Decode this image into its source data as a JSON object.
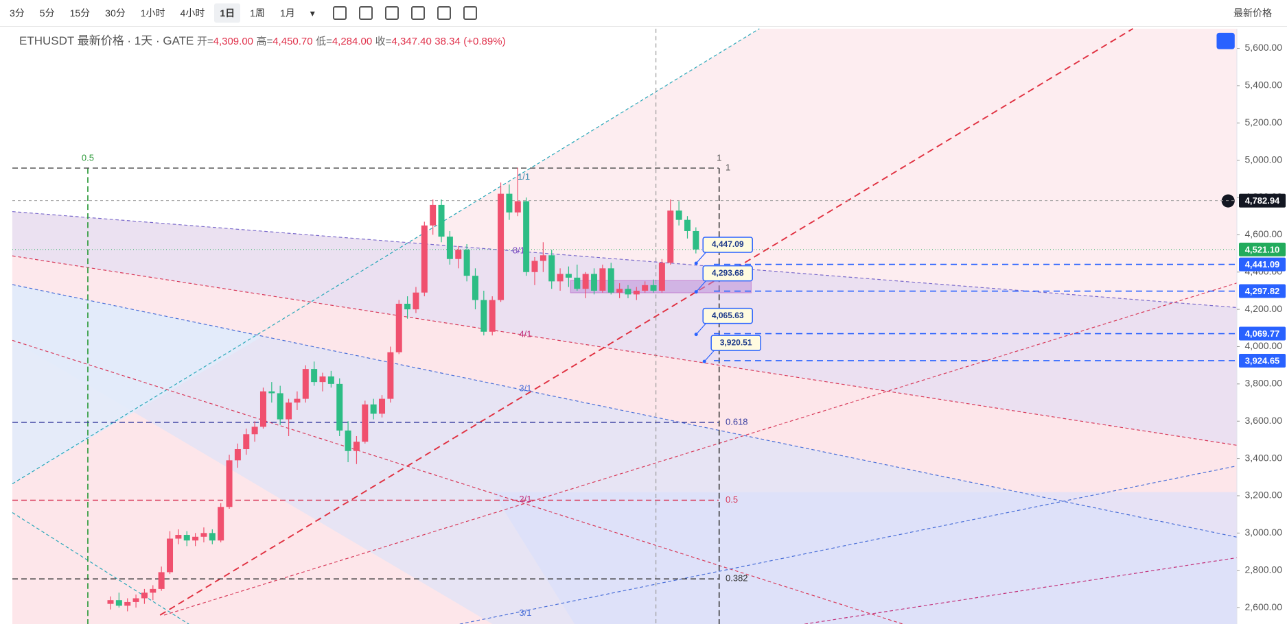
{
  "toolbar": {
    "intervals": [
      "3分",
      "5分",
      "15分",
      "30分",
      "1小时",
      "4小时",
      "1日",
      "1周",
      "1月"
    ],
    "active": "1日",
    "price_source": "最新价格"
  },
  "legend": {
    "symbol": "ETHUSDT 最新价格 · 1天 · GATE",
    "items": [
      {
        "label": "开=",
        "value": "4,309.00"
      },
      {
        "label": "高=",
        "value": "4,450.70"
      },
      {
        "label": "低=",
        "value": "4,284.00"
      },
      {
        "label": "收=",
        "value": "4,347.40"
      }
    ],
    "change": "38.34",
    "change_pct": "(+0.89%)"
  },
  "chart_data": {
    "type": "candlestick",
    "up_color": "#f0506e",
    "down_color": "#2dbd85",
    "open": [
      2620,
      2640,
      2610,
      2630,
      2650,
      2680,
      2700,
      2790,
      2970,
      2990,
      2960,
      2980,
      3000,
      2960,
      3140,
      3390,
      3450,
      3530,
      3570,
      3760,
      3750,
      3610,
      3700,
      3720,
      3880,
      3810,
      3840,
      3800,
      3550,
      3440,
      3490,
      3690,
      3640,
      3720,
      3970,
      4230,
      4200,
      4290,
      4650,
      4760,
      4590,
      4470,
      4520,
      4380,
      4250,
      4080,
      4250,
      4820,
      4720,
      4780,
      4400,
      4460,
      4490,
      4350,
      4390,
      4370,
      4310,
      4390,
      4300,
      4420,
      4290,
      4310,
      4280,
      4300,
      4330,
      4300,
      4450,
      4730,
      4680,
      4620
    ],
    "high": [
      2660,
      2680,
      2650,
      2670,
      2700,
      2720,
      2820,
      3010,
      3020,
      3010,
      3000,
      3030,
      3020,
      3160,
      3420,
      3480,
      3560,
      3600,
      3780,
      3810,
      3790,
      3720,
      3760,
      3900,
      3920,
      3860,
      3870,
      3830,
      3600,
      3520,
      3710,
      3720,
      3740,
      4000,
      4250,
      4270,
      4320,
      4670,
      4790,
      4790,
      4620,
      4540,
      4550,
      4420,
      4300,
      4270,
      4880,
      4870,
      4960,
      4800,
      4480,
      4560,
      4520,
      4420,
      4430,
      4440,
      4400,
      4420,
      4440,
      4450,
      4340,
      4330,
      4320,
      4350,
      4360,
      4470,
      4790,
      4780,
      4700,
      4640
    ],
    "low": [
      2590,
      2600,
      2580,
      2600,
      2620,
      2640,
      2690,
      2780,
      2940,
      2930,
      2930,
      2950,
      2940,
      2950,
      3130,
      3350,
      3420,
      3490,
      3560,
      3700,
      3580,
      3520,
      3660,
      3700,
      3790,
      3760,
      3780,
      3520,
      3380,
      3370,
      3480,
      3610,
      3620,
      3700,
      3960,
      4150,
      4180,
      4270,
      4600,
      4560,
      4440,
      4420,
      4350,
      4200,
      4060,
      4060,
      4240,
      4680,
      4700,
      4380,
      4330,
      4400,
      4310,
      4300,
      4320,
      4300,
      4260,
      4280,
      4290,
      4280,
      4260,
      4260,
      4250,
      4290,
      4290,
      4290,
      4440,
      4650,
      4580,
      4500
    ],
    "close": [
      2640,
      2610,
      2630,
      2650,
      2680,
      2700,
      2790,
      2970,
      2990,
      2960,
      2980,
      3000,
      2960,
      3140,
      3390,
      3450,
      3530,
      3570,
      3760,
      3750,
      3610,
      3700,
      3720,
      3880,
      3810,
      3840,
      3800,
      3550,
      3440,
      3490,
      3690,
      3640,
      3720,
      3970,
      4230,
      4200,
      4290,
      4650,
      4760,
      4590,
      4470,
      4520,
      4380,
      4250,
      4080,
      4250,
      4820,
      4720,
      4780,
      4400,
      4460,
      4490,
      4350,
      4390,
      4370,
      4310,
      4390,
      4300,
      4420,
      4290,
      4310,
      4280,
      4300,
      4330,
      4300,
      4450,
      4730,
      4680,
      4620,
      4521.1
    ],
    "ylim": [
      2512,
      5705
    ],
    "yticks": [
      {
        "value": 2600,
        "label": "2,600.00"
      },
      {
        "value": 2800,
        "label": "2,800.00"
      },
      {
        "value": 3000,
        "label": "3,000.00"
      },
      {
        "value": 3200,
        "label": "3,200.00"
      },
      {
        "value": 3400,
        "label": "3,400.00"
      },
      {
        "value": 3600,
        "label": "3,600.00"
      },
      {
        "value": 3800,
        "label": "3,800.00"
      },
      {
        "value": 4000,
        "label": "4,000.00"
      },
      {
        "value": 4200,
        "label": "4,200.00"
      },
      {
        "value": 4400,
        "label": "4,400.00"
      },
      {
        "value": 4600,
        "label": "4,600.00"
      },
      {
        "value": 4800,
        "label": "4,800.00"
      },
      {
        "value": 5000,
        "label": "5,000.00"
      },
      {
        "value": 5200,
        "label": "5,200.00"
      },
      {
        "value": 5400,
        "label": "5,400.00"
      },
      {
        "value": 5600,
        "label": "5,600.00"
      }
    ],
    "price_tags": [
      {
        "value": 4782.94,
        "label": "4,782.94",
        "color": "#131722"
      },
      {
        "value": 4521.1,
        "label": "4,521.10",
        "color": "#22ab5c"
      },
      {
        "value": 4441.09,
        "label": "4,441.09",
        "color": "#2962ff"
      },
      {
        "value": 4297.82,
        "label": "4,297.82",
        "color": "#2962ff"
      },
      {
        "value": 4069.77,
        "label": "4,069.77",
        "color": "#2962ff"
      },
      {
        "value": 3924.65,
        "label": "3,924.65",
        "color": "#2962ff"
      }
    ],
    "callouts": [
      {
        "value": 4447.09,
        "label": "4,447.09"
      },
      {
        "value": 4293.68,
        "label": "4,293.68"
      },
      {
        "value": 4065.63,
        "label": "4,065.63"
      },
      {
        "value": 3920.51,
        "label": "3,920.51"
      }
    ],
    "fib_levels": [
      {
        "value": 4958,
        "label": "1",
        "color": "#555"
      },
      {
        "value": 3594,
        "label": "0.618",
        "color": "#3a3fa0"
      },
      {
        "value": 3176,
        "label": "0.5",
        "color": "#d83a5a"
      },
      {
        "value": 2754,
        "label": "0.382",
        "color": "#333"
      }
    ],
    "gann_labels": [
      "1/1",
      "8/1",
      "4/1",
      "3/1",
      "2/1",
      "3/1",
      "0.5",
      "1"
    ]
  }
}
